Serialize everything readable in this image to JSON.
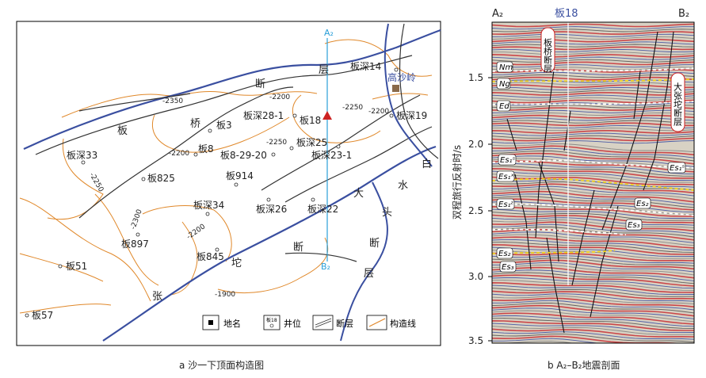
{
  "map": {
    "caption": "a  沙一下顶面构造图",
    "profile_start": "A₂",
    "profile_end": "B₂",
    "wells": [
      "板深14",
      "板深19",
      "板深28-1",
      "板18",
      "板3",
      "板8",
      "板8-29-20",
      "板深25",
      "板深23-1",
      "板深33",
      "板825",
      "板914",
      "板深34",
      "板深26",
      "板深22",
      "板897",
      "板845",
      "板51",
      "板57"
    ],
    "place": "高沙岭",
    "contours": [
      "-2350",
      "-2200",
      "-2250",
      "-2200",
      "-2250",
      "-2250",
      "-2200",
      "-2300",
      "-2200",
      "-1900"
    ],
    "fault_chars": {
      "banqiao": [
        "板",
        "桥",
        "断",
        "层"
      ],
      "baishuitou": [
        "白",
        "水",
        "头",
        "断",
        "层"
      ],
      "dazhangtuo": [
        "大",
        "张",
        "坨",
        "断"
      ]
    },
    "legend": [
      {
        "label": "地名"
      },
      {
        "label": "井位",
        "symbol_text": "板18"
      },
      {
        "label": "断层"
      },
      {
        "label": "构造线"
      }
    ]
  },
  "seismic": {
    "caption": "b  A₂–B₂地震剖面",
    "left_label": "A₂",
    "right_label": "B₂",
    "well_label": "板18",
    "ylabel": "双程旅行反射时/s",
    "yticks": [
      "1.5",
      "2.0",
      "2.5",
      "3.0",
      "3.5"
    ],
    "horizons": [
      "Nm",
      "Ng",
      "Ed",
      "Es₁ˢ",
      "Es₁ˣ",
      "Es₁ᶻ",
      "Es₂",
      "Es₃",
      "Es₂",
      "Es₃",
      "Es₁ˢ"
    ],
    "fault_names": [
      "板桥断层",
      "大张坨断层"
    ]
  },
  "colors": {
    "fault": "#3a4fa0",
    "contour": "#e0882a",
    "profile": "#2a9fd8",
    "well_red": "#cc2222",
    "place": "#8a6a4a"
  }
}
